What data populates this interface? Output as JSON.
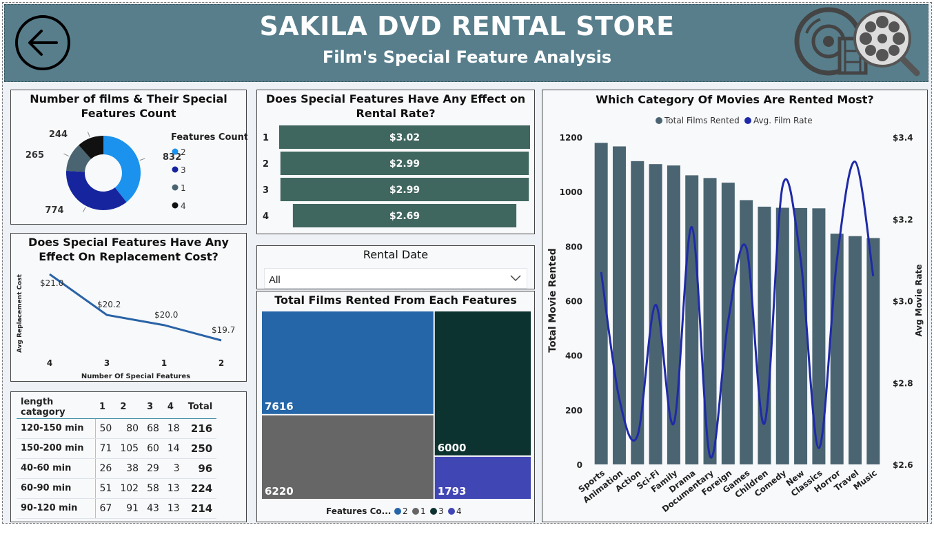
{
  "header": {
    "title": "SAKILA DVD RENTAL STORE",
    "subtitle": "Film's Special Feature Analysis"
  },
  "icons": {
    "back": "back-arrow-icon",
    "logo": "film-reel-icon"
  },
  "colors": {
    "header_bg": "#587e8c",
    "teal_bar": "#40675f",
    "slate_bar": "#4a6571",
    "line": "#1f2aa8",
    "donut_2": "#1a92ee",
    "donut_3": "#16259d",
    "donut_1": "#4a6571",
    "donut_4": "#111111",
    "tree_2": "#2466a8",
    "tree_1": "#666666",
    "tree_3": "#0d3330",
    "tree_4": "#4146b5"
  },
  "donut": {
    "title": "Number of films & Their Special Features Count",
    "legend_title": "Features Count",
    "chart_data": {
      "type": "pie",
      "slices": [
        {
          "label": "2",
          "value": 832
        },
        {
          "label": "3",
          "value": 774
        },
        {
          "label": "1",
          "value": 265
        },
        {
          "label": "4",
          "value": 244
        }
      ]
    }
  },
  "rental_rate": {
    "title": "Does Special Features Have Any Effect on Rental Rate?",
    "chart_data": {
      "type": "bar",
      "categories": [
        "1",
        "2",
        "3",
        "4"
      ],
      "values": [
        3.02,
        2.99,
        2.99,
        2.69
      ],
      "labels": [
        "$3.02",
        "$2.99",
        "$2.99",
        "$2.69"
      ]
    }
  },
  "replacement": {
    "title": "Does Special Features Have Any Effect On Replacement Cost?",
    "chart_data": {
      "type": "line",
      "categories": [
        "4",
        "3",
        "1",
        "2"
      ],
      "values": [
        21.0,
        20.2,
        20.0,
        19.7
      ],
      "labels": [
        "$21.0",
        "$20.2",
        "$20.0",
        "$19.7"
      ],
      "xlabel": "Number Of Special Features",
      "ylabel": "Avg Replacement Cost"
    }
  },
  "length_table": {
    "headers": [
      "length catagory",
      "1",
      "2",
      "3",
      "4",
      "Total"
    ],
    "rows": [
      [
        "120-150 min",
        "50",
        "80",
        "68",
        "18",
        "216"
      ],
      [
        "150-200 min",
        "71",
        "105",
        "60",
        "14",
        "250"
      ],
      [
        "40-60 min",
        "26",
        "38",
        "29",
        "3",
        "96"
      ],
      [
        "60-90 min",
        "51",
        "102",
        "58",
        "13",
        "224"
      ],
      [
        "90-120 min",
        "67",
        "91",
        "43",
        "13",
        "214"
      ]
    ]
  },
  "slicer": {
    "title": "Rental Date",
    "value": "All",
    "icon": "chevron-down-icon"
  },
  "treemap": {
    "title": "Total Films Rented From Each Features",
    "legend_label": "Features Co...",
    "chart_data": {
      "type": "treemap",
      "items": [
        {
          "label": "2",
          "value": 7616
        },
        {
          "label": "1",
          "value": 6220
        },
        {
          "label": "3",
          "value": 6000
        },
        {
          "label": "4",
          "value": 1793
        }
      ]
    }
  },
  "category": {
    "title": "Which Category Of Movies Are Rented Most?",
    "chart_data": {
      "type": "bar+line",
      "categories": [
        "Sports",
        "Animation",
        "Action",
        "Sci-Fi",
        "Family",
        "Drama",
        "Documentary",
        "Foreign",
        "Games",
        "Children",
        "Comedy",
        "New",
        "Classics",
        "Horror",
        "Travel",
        "Music"
      ],
      "series": [
        {
          "name": "Total Films Rented",
          "axis": "left",
          "values": [
            1179,
            1166,
            1112,
            1101,
            1096,
            1060,
            1050,
            1033,
            969,
            945,
            941,
            940,
            939,
            846,
            837,
            830
          ]
        },
        {
          "name": "Avg. Film Rate",
          "axis": "right",
          "values": [
            3.07,
            2.76,
            2.67,
            2.99,
            2.7,
            3.18,
            2.62,
            2.95,
            3.13,
            2.7,
            3.28,
            3.1,
            2.64,
            3.1,
            3.34,
            3.06
          ]
        }
      ],
      "ylabel": "Total Movie Rented",
      "y2label": "Avg Movie Rate",
      "ylim": [
        0,
        1200
      ],
      "y2lim": [
        2.6,
        3.4
      ],
      "yticks": [
        "0",
        "200",
        "400",
        "600",
        "800",
        "1000",
        "1200"
      ],
      "y2ticks": [
        "$2.6",
        "$2.8",
        "$3.0",
        "$3.2",
        "$3.4"
      ]
    }
  }
}
